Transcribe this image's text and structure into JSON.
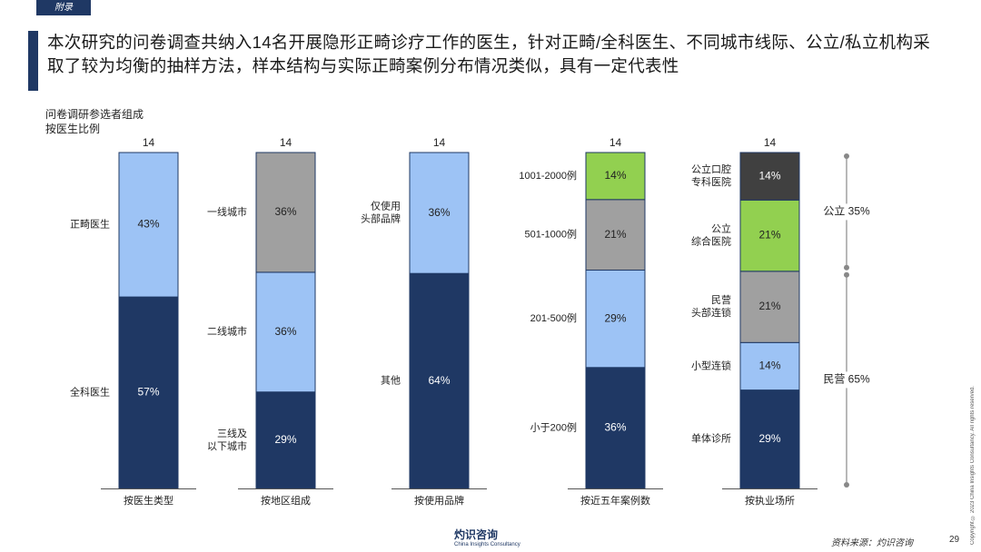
{
  "tag": "附录",
  "headline": "本次研究的问卷调查共纳入14名开展隐形正畸诊疗工作的医生，针对正畸/全科医生、不同城市线际、公立/私立机构采取了较为均衡的抽样方法，样本结构与实际正畸案例分布情况类似，具有一定代表性",
  "subtitle_line1": "问卷调研参选者组成",
  "subtitle_line2": "按医生比例",
  "footer_brand": "灼识咨询",
  "footer_brand_en": "China Insights Consultancy",
  "source": "资料来源：灼识咨询",
  "page_number": "29",
  "copyright": "Copyright © 2023 China Insights Consultancy. All rights reserved.",
  "colors": {
    "navy": "#1f3864",
    "light_blue": "#9dc3f5",
    "gray": "#a0a0a0",
    "green": "#92d050",
    "dark_gray": "#404040"
  },
  "chart_data": [
    {
      "type": "bar",
      "stacked": true,
      "xlabel": "按医生类型",
      "total": "14",
      "segments": [
        {
          "label": "全科医生",
          "value": 57,
          "color": "#1f3864"
        },
        {
          "label": "正畸医生",
          "value": 43,
          "color": "#9dc3f5"
        }
      ]
    },
    {
      "type": "bar",
      "stacked": true,
      "xlabel": "按地区组成",
      "total": "14",
      "segments": [
        {
          "label": "三线及\n以下城市",
          "value": 29,
          "color": "#1f3864"
        },
        {
          "label": "二线城市",
          "value": 36,
          "color": "#9dc3f5"
        },
        {
          "label": "一线城市",
          "value": 36,
          "color": "#a0a0a0"
        }
      ]
    },
    {
      "type": "bar",
      "stacked": true,
      "xlabel": "按使用品牌",
      "total": "14",
      "segments": [
        {
          "label": "其他",
          "value": 64,
          "color": "#1f3864"
        },
        {
          "label": "仅使用\n头部品牌",
          "value": 36,
          "color": "#9dc3f5"
        }
      ]
    },
    {
      "type": "bar",
      "stacked": true,
      "xlabel": "按近五年案例数",
      "total": "14",
      "segments": [
        {
          "label": "小于200例",
          "value": 36,
          "color": "#1f3864"
        },
        {
          "label": "201-500例",
          "value": 29,
          "color": "#9dc3f5"
        },
        {
          "label": "501-1000例",
          "value": 21,
          "color": "#a0a0a0"
        },
        {
          "label": "1001-2000例",
          "value": 14,
          "color": "#92d050"
        }
      ]
    },
    {
      "type": "bar",
      "stacked": true,
      "xlabel": "按执业场所",
      "total": "14",
      "segments": [
        {
          "label": "单体诊所",
          "value": 29,
          "color": "#1f3864"
        },
        {
          "label": "小型连锁",
          "value": 14,
          "color": "#9dc3f5"
        },
        {
          "label": "民营\n头部连锁",
          "value": 21,
          "color": "#a0a0a0"
        },
        {
          "label": "公立\n综合医院",
          "value": 21,
          "color": "#92d050"
        },
        {
          "label": "公立口腔\n专科医院",
          "value": 14,
          "color": "#404040"
        }
      ],
      "brackets": [
        {
          "label": "公立 35%",
          "from_segment": 3,
          "to_segment": 4
        },
        {
          "label": "民营 65%",
          "from_segment": 0,
          "to_segment": 2
        }
      ]
    }
  ]
}
